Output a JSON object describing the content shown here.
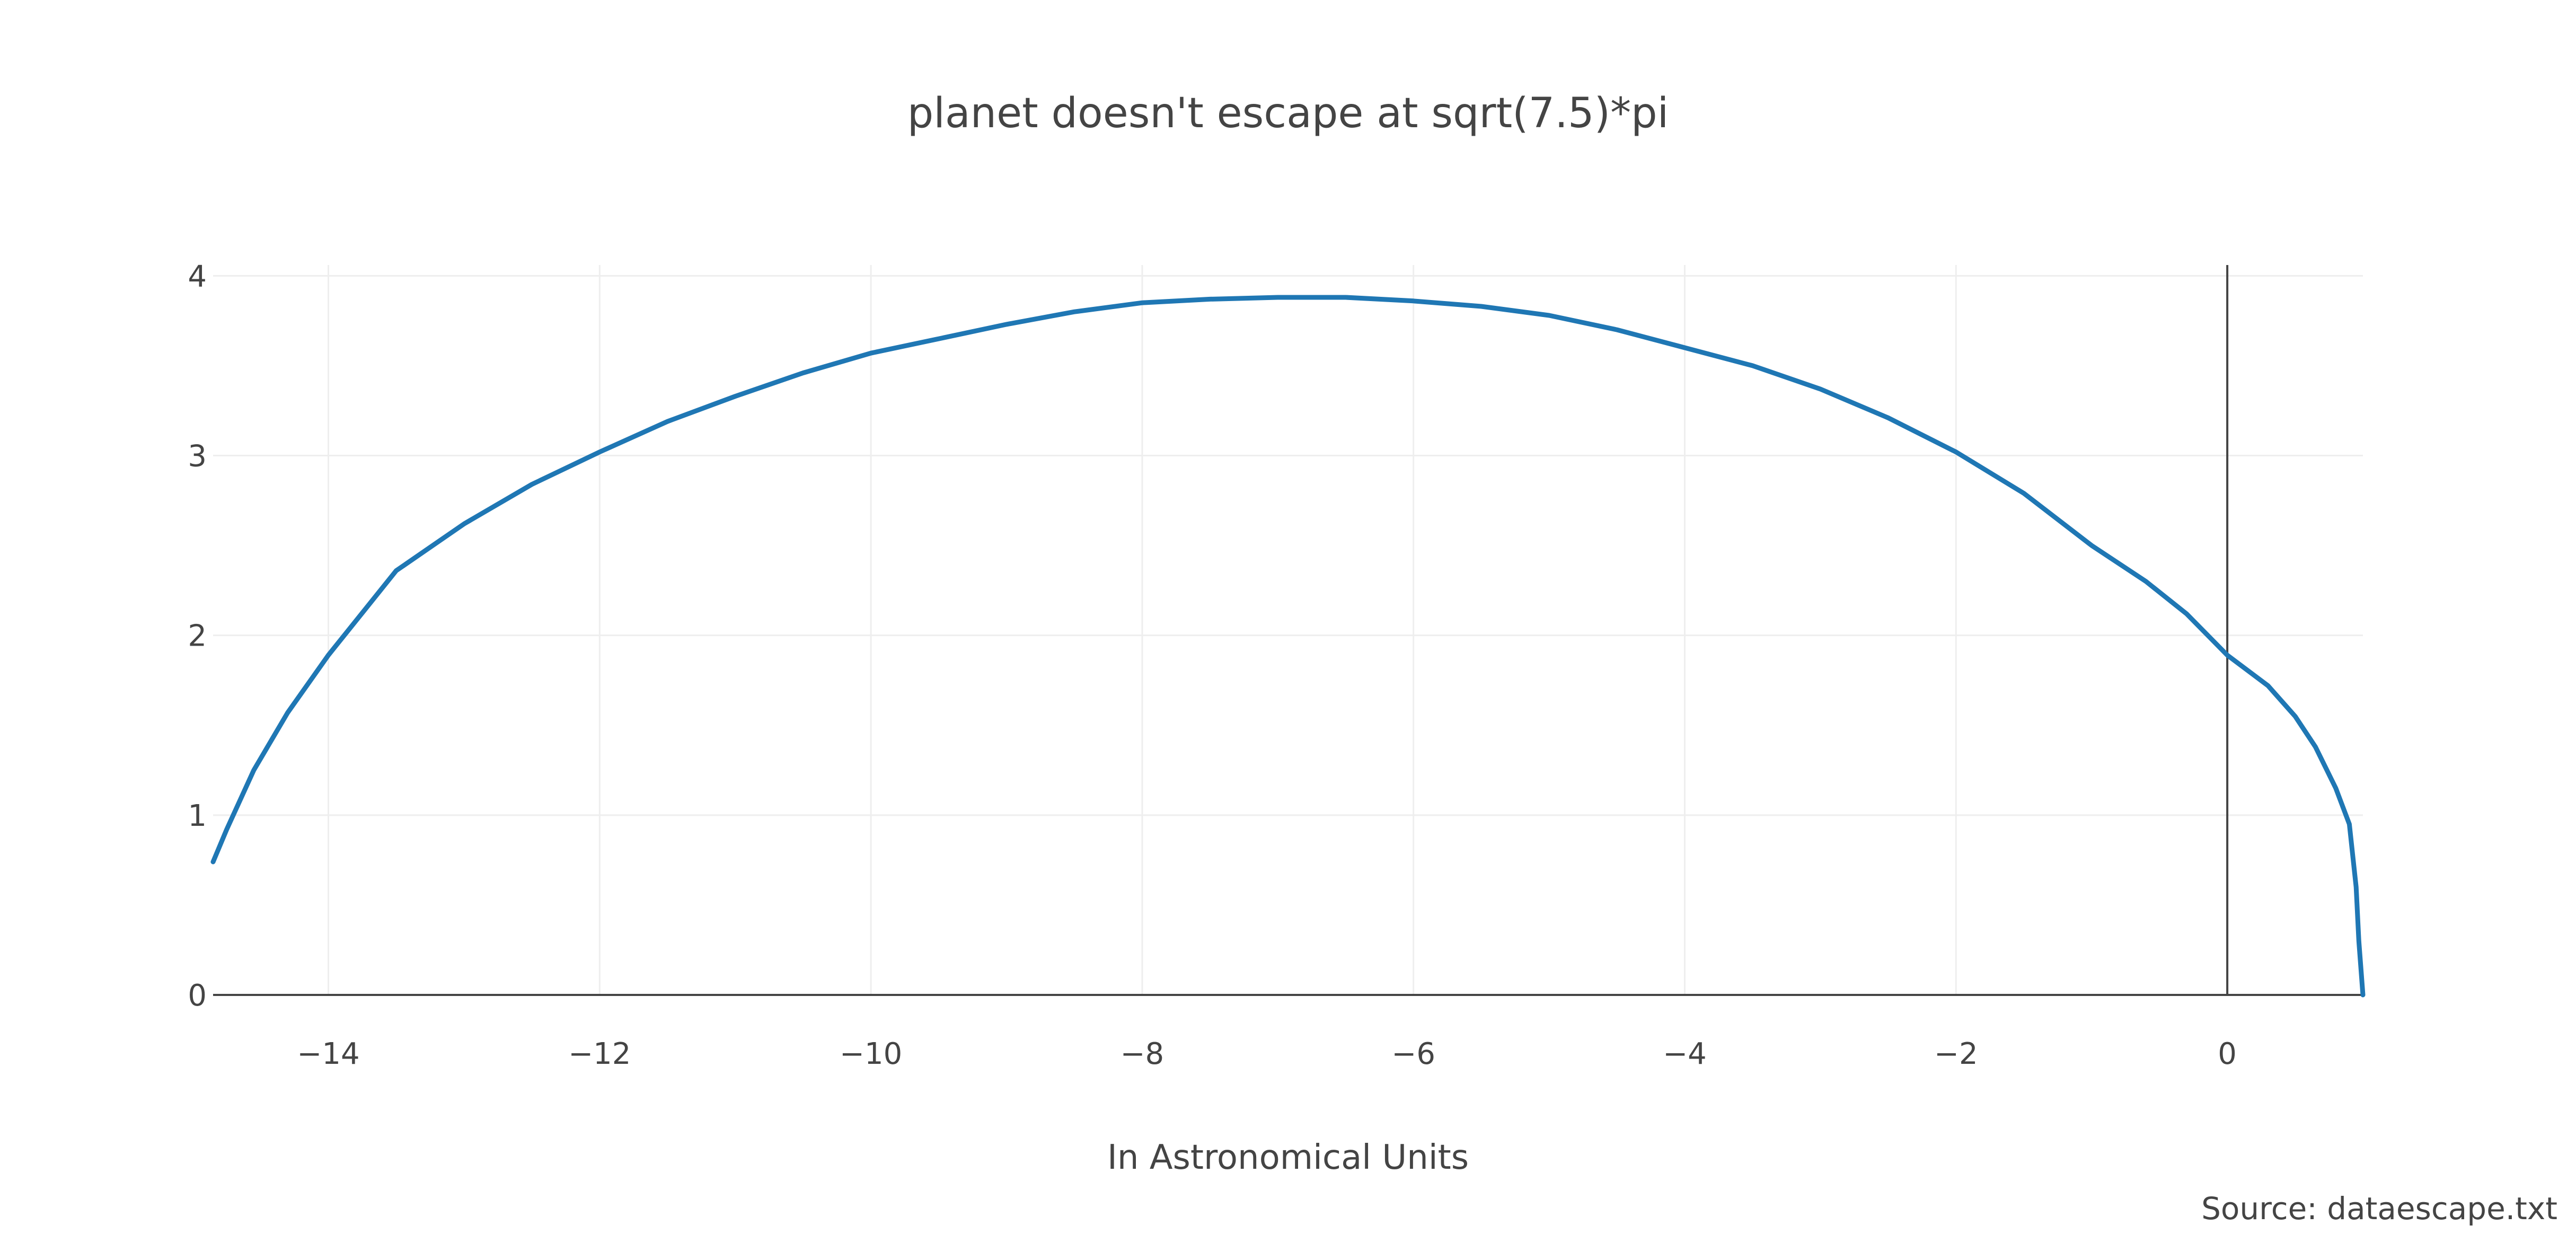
{
  "chart_data": {
    "type": "line",
    "title": "planet doesn't escape at sqrt(7.5)*pi",
    "xlabel": "In Astronomical Units",
    "ylabel": "",
    "source_note": "Source: dataescape.txt",
    "xlim": [
      -14.85,
      1.0
    ],
    "ylim": [
      0,
      4.06
    ],
    "x_ticks": [
      -14,
      -12,
      -10,
      -8,
      -6,
      -4,
      -2,
      0
    ],
    "x_tick_labels": [
      "−14",
      "−12",
      "−10",
      "−8",
      "−6",
      "−4",
      "−2",
      "0"
    ],
    "y_ticks": [
      0,
      1,
      2,
      3,
      4
    ],
    "y_tick_labels": [
      "0",
      "1",
      "2",
      "3",
      "4"
    ],
    "grid": true,
    "series": [
      {
        "color": "#1f77b4",
        "x": [
          1.0,
          0.97,
          0.95,
          0.9,
          0.8,
          0.65,
          0.5,
          0.3,
          0.0,
          -0.3,
          -0.6,
          -1.0,
          -1.5,
          -2.0,
          -2.5,
          -3.0,
          -3.5,
          -4.0,
          -4.5,
          -5.0,
          -5.5,
          -6.0,
          -6.5,
          -7.0,
          -7.5,
          -8.0,
          -8.5,
          -9.0,
          -9.5,
          -10.0,
          -10.5,
          -11.0,
          -11.5,
          -12.0,
          -12.5,
          -13.0,
          -13.5,
          -14.0,
          -14.3,
          -14.55,
          -14.75,
          -14.85
        ],
        "y": [
          0.0,
          0.3,
          0.6,
          0.95,
          1.15,
          1.38,
          1.55,
          1.72,
          1.89,
          2.12,
          2.3,
          2.5,
          2.79,
          3.02,
          3.21,
          3.37,
          3.5,
          3.6,
          3.7,
          3.78,
          3.83,
          3.86,
          3.88,
          3.88,
          3.87,
          3.85,
          3.8,
          3.73,
          3.65,
          3.57,
          3.46,
          3.33,
          3.19,
          3.02,
          2.84,
          2.62,
          2.36,
          1.89,
          1.57,
          1.25,
          0.92,
          0.74
        ]
      }
    ]
  }
}
